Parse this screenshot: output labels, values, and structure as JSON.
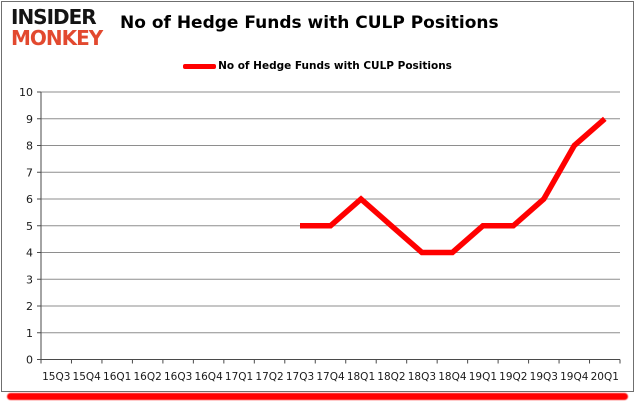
{
  "header": {
    "logo_line1": "INSIDER",
    "logo_line2": "MONKEY",
    "title": "No of Hedge Funds with CULP Positions"
  },
  "legend": {
    "label": "No of Hedge Funds with CULP Positions"
  },
  "colors": {
    "line": "#ff0000",
    "logo_red": "#e2492f",
    "grid": "#8e8e8e",
    "axis": "#4a4a4a",
    "accent_bar": "#ff0000"
  },
  "chart_data": {
    "type": "line",
    "title": "No of Hedge Funds with CULP Positions",
    "categories": [
      "15Q3",
      "15Q4",
      "16Q1",
      "16Q2",
      "16Q3",
      "16Q4",
      "17Q1",
      "17Q2",
      "17Q3",
      "17Q4",
      "18Q1",
      "18Q2",
      "18Q3",
      "18Q4",
      "19Q1",
      "19Q2",
      "19Q3",
      "19Q4",
      "20Q1"
    ],
    "series": [
      {
        "name": "No of Hedge Funds with CULP Positions",
        "values": [
          null,
          null,
          null,
          null,
          null,
          null,
          null,
          null,
          5,
          5,
          6,
          5,
          4,
          4,
          5,
          5,
          6,
          8,
          9
        ]
      }
    ],
    "xlabel": "",
    "ylabel": "",
    "ylim": [
      0,
      10
    ],
    "ytick_step": 1,
    "grid": true,
    "legend_position": "top-center"
  }
}
